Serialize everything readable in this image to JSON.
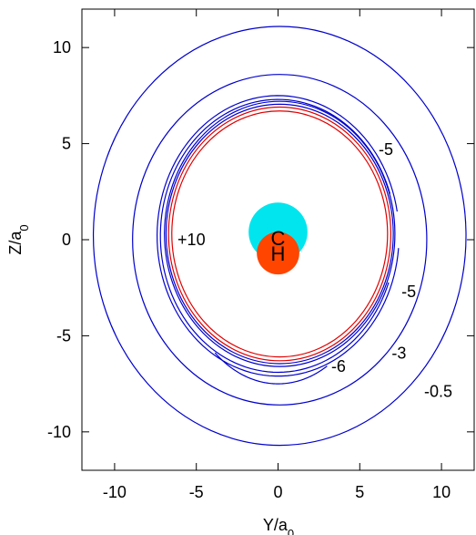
{
  "chart_data": {
    "type": "contour",
    "xlabel": "Y/a",
    "xlabel_sub": "0",
    "ylabel": "Z/a",
    "ylabel_sub": "0",
    "xlim": [
      -12,
      12
    ],
    "ylim": [
      -12,
      12
    ],
    "xticks": [
      "-10",
      "-5",
      "0",
      "5",
      "10"
    ],
    "xtick_values": [
      -10,
      -5,
      0,
      5,
      10
    ],
    "yticks": [
      "-10",
      "-5",
      "0",
      "5",
      "10"
    ],
    "ytick_values": [
      -10,
      -5,
      0,
      5,
      10
    ],
    "grid": false,
    "atoms": [
      {
        "label": "C",
        "x": 0,
        "y": 0.4,
        "r": 1.8,
        "color": "#00e5ee"
      },
      {
        "label": "H",
        "x": 0,
        "y": -0.7,
        "r": 1.3,
        "color": "#ff4500"
      }
    ],
    "contours": [
      {
        "level": "+10",
        "color": "#e00000",
        "cx": 0.1,
        "cy": 0.3,
        "rx": 6.6,
        "ry": 6.4,
        "arc": [
          0,
          360
        ]
      },
      {
        "level": "+10",
        "color": "#e00000",
        "cx": 0.1,
        "cy": 0.3,
        "rx": 6.8,
        "ry": 6.6,
        "arc": [
          0,
          360
        ]
      },
      {
        "level": "-6",
        "color": "#0000cc",
        "cx": 0.1,
        "cy": 0.3,
        "rx": 6.95,
        "ry": 6.75,
        "arc": [
          0,
          360
        ]
      },
      {
        "level": "-6",
        "color": "#0000cc",
        "cx": 0.1,
        "cy": 0.3,
        "rx": 7.05,
        "ry": 6.9,
        "arc": [
          0,
          360
        ]
      },
      {
        "level": "-5",
        "color": "#0000cc",
        "cx": 0.0,
        "cy": 0.2,
        "rx": 7.2,
        "ry": 7.1,
        "arc": [
          18,
          340
        ]
      },
      {
        "level": "-5",
        "color": "#0000cc",
        "cx": 0.0,
        "cy": 0.2,
        "rx": 7.4,
        "ry": 7.3,
        "arc": [
          10,
          355
        ]
      },
      {
        "level": "-6",
        "color": "#0000cc",
        "cx": 0.0,
        "cy": -0.6,
        "rx": 6.0,
        "ry": 6.9,
        "arc": [
          230,
          300
        ]
      },
      {
        "level": "-3",
        "color": "#0000cc",
        "cx": 0.1,
        "cy": 0.0,
        "rx": 9.0,
        "ry": 8.6,
        "arc": [
          0,
          360
        ]
      },
      {
        "level": "-0.5",
        "color": "#0000cc",
        "cx": 0.1,
        "cy": 0.2,
        "rx": 11.4,
        "ry": 10.9,
        "arc": [
          0,
          360
        ]
      }
    ],
    "annotations": [
      {
        "text": "+10",
        "x": -5.3,
        "y": 0
      },
      {
        "text": "-5",
        "x": 6.6,
        "y": 4.7
      },
      {
        "text": "-5",
        "x": 8.0,
        "y": -2.7
      },
      {
        "text": "-6",
        "x": 3.7,
        "y": -6.6
      },
      {
        "text": "-3",
        "x": 7.4,
        "y": -5.9
      },
      {
        "text": "-0.5",
        "x": 9.8,
        "y": -7.9
      }
    ]
  }
}
